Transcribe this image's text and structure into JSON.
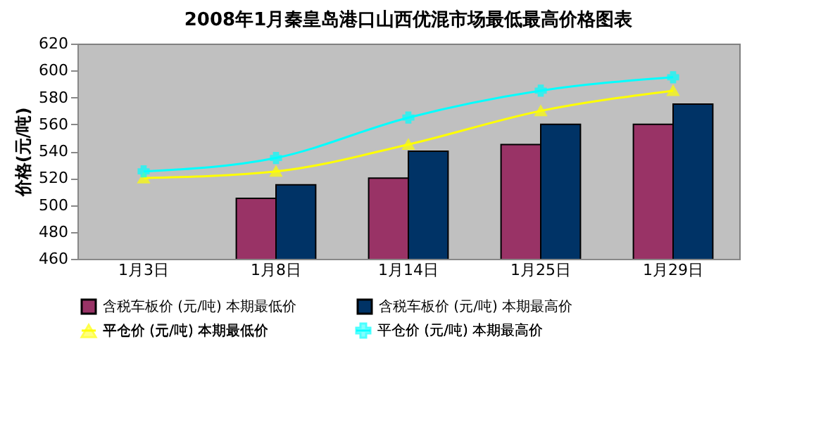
{
  "chart_data": {
    "type": "bar",
    "title": "2008年1月秦皇岛港口山西优混市场最低最高价格图表",
    "ylabel": "价格(元/吨)",
    "categories": [
      "1月3日",
      "1月8日",
      "1月14日",
      "1月25日",
      "1月29日"
    ],
    "series": [
      {
        "name": "含税车板价 (元/吨)    本期最低价",
        "color": "#993366",
        "values": [
          null,
          505,
          520,
          545,
          560
        ]
      },
      {
        "name": "含税车板价 (元/吨)    本期最高价",
        "color": "#003366",
        "values": [
          null,
          515,
          540,
          560,
          575
        ]
      },
      {
        "name": "平仓价       (元/吨)    本期最低价",
        "type": "line",
        "marker": "triangle",
        "color": "#ffff00",
        "values": [
          520,
          525,
          545,
          570,
          585
        ]
      },
      {
        "name": "平仓价       (元/吨)    本期最高价",
        "type": "line",
        "marker": "cross",
        "color": "#00ffff",
        "values": [
          525,
          535,
          565,
          585,
          595
        ]
      }
    ],
    "ylim": [
      460,
      620
    ],
    "yticks": [
      460,
      480,
      500,
      520,
      540,
      560,
      580,
      600,
      620
    ],
    "legend": "bottom"
  }
}
